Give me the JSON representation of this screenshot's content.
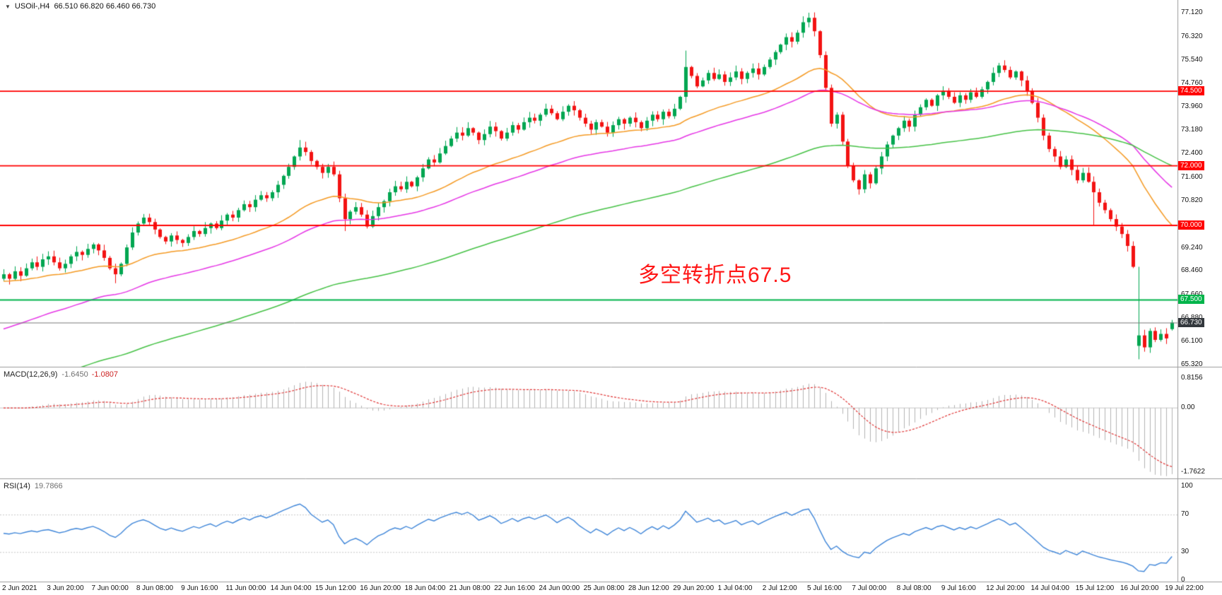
{
  "icons": {
    "symbol_marker": "▼"
  },
  "header": {
    "symbol": "USOil-,H4",
    "ohlc": "66.510 66.820 66.460 66.730"
  },
  "colors": {
    "background": "#ffffff",
    "up": "#00a651",
    "down": "#f31212",
    "ma_fast": "#f59a23",
    "ma_mid": "#e636e6",
    "ma_slow": "#46c246",
    "macd_hist": "#b3b3b3",
    "macd_signal": "#e03232",
    "macd_zero": "#c9c9c9",
    "rsi_line": "#3f86d9",
    "rsi_level": "#c8c8c8",
    "level_red": "#ff0000",
    "level_green": "#00b44a",
    "current_line": "#7a7a7a",
    "current_badge": "#33383d",
    "separator": "#9b9b9b"
  },
  "chart_data": [
    {
      "type": "candlestick",
      "title": "USOil-,H4",
      "timeframe": "H4",
      "ylim": [
        65.32,
        77.12
      ],
      "ohlc_current": {
        "open": 66.51,
        "high": 66.82,
        "low": 66.46,
        "close": 66.73
      },
      "closes": [
        68.35,
        68.2,
        68.45,
        68.3,
        68.55,
        68.75,
        68.6,
        68.85,
        68.95,
        68.75,
        68.55,
        68.7,
        68.95,
        69.1,
        69.0,
        69.2,
        69.35,
        69.15,
        68.9,
        68.55,
        68.35,
        68.7,
        69.25,
        69.75,
        70.05,
        70.25,
        70.1,
        69.85,
        69.6,
        69.45,
        69.65,
        69.5,
        69.4,
        69.6,
        69.8,
        69.7,
        69.9,
        70.05,
        69.9,
        70.15,
        70.35,
        70.25,
        70.5,
        70.7,
        70.6,
        70.85,
        71.0,
        70.9,
        71.1,
        71.35,
        71.65,
        71.95,
        72.3,
        72.6,
        72.45,
        72.15,
        71.95,
        71.75,
        71.95,
        71.7,
        70.9,
        70.2,
        70.45,
        70.6,
        70.35,
        69.95,
        70.3,
        70.6,
        70.8,
        71.1,
        71.3,
        71.2,
        71.45,
        71.3,
        71.6,
        71.9,
        72.2,
        72.1,
        72.4,
        72.65,
        72.9,
        73.1,
        73.0,
        73.25,
        73.1,
        72.85,
        73.05,
        73.3,
        73.15,
        72.9,
        73.1,
        73.35,
        73.2,
        73.45,
        73.6,
        73.5,
        73.7,
        73.9,
        73.75,
        73.55,
        73.8,
        74.0,
        73.85,
        73.6,
        73.4,
        73.2,
        73.45,
        73.3,
        73.1,
        73.35,
        73.55,
        73.4,
        73.6,
        73.45,
        73.25,
        73.5,
        73.7,
        73.55,
        73.8,
        73.65,
        73.9,
        74.3,
        75.3,
        75.0,
        74.65,
        74.85,
        75.1,
        74.9,
        75.05,
        74.8,
        74.95,
        75.15,
        74.9,
        75.1,
        75.25,
        75.05,
        75.3,
        75.55,
        75.8,
        76.05,
        76.3,
        76.15,
        76.45,
        76.8,
        76.95,
        76.5,
        75.7,
        74.6,
        73.4,
        73.7,
        72.8,
        72.0,
        71.5,
        71.2,
        71.7,
        71.4,
        71.9,
        72.3,
        72.7,
        73.0,
        73.25,
        73.5,
        73.3,
        73.7,
        73.95,
        74.2,
        74.0,
        74.35,
        74.5,
        74.3,
        74.1,
        74.35,
        74.2,
        74.45,
        74.3,
        74.55,
        74.8,
        75.1,
        75.35,
        75.2,
        74.95,
        75.15,
        74.85,
        74.5,
        74.1,
        73.6,
        73.0,
        72.55,
        72.3,
        71.95,
        72.2,
        71.85,
        71.5,
        71.75,
        71.45,
        71.1,
        70.75,
        70.5,
        70.2,
        69.95,
        69.7,
        69.3,
        68.6,
        66.3,
        65.9,
        66.45,
        66.15,
        66.35,
        66.2,
        66.73
      ],
      "special_candles": {
        "20": {
          "low": 68.05
        },
        "53": {
          "high": 72.85
        },
        "61": {
          "low": 69.8
        },
        "122": {
          "high": 75.85
        },
        "143": {
          "high": 77.0
        },
        "144": {
          "high": 77.12
        },
        "195": {
          "low": 70.0
        },
        "203": {
          "open": 65.95,
          "high": 68.6,
          "low": 65.5
        },
        "209": {
          "open": 66.51,
          "high": 66.82,
          "low": 66.46,
          "close": 66.73
        }
      },
      "moving_averages": [
        {
          "name": "fast-ma",
          "color": "#f59a23",
          "alpha": 0.06,
          "seed": 68.1
        },
        {
          "name": "mid-ma",
          "color": "#e636e6",
          "alpha": 0.035,
          "seed": 66.45
        },
        {
          "name": "slow-ma",
          "color": "#46c246",
          "alpha": 0.016,
          "seed": 64.3
        }
      ],
      "levels": [
        {
          "value": 74.5,
          "label": "74.500",
          "color": "#ff0000"
        },
        {
          "value": 72.0,
          "label": "72.000",
          "color": "#ff0000"
        },
        {
          "value": 70.0,
          "label": "70.000",
          "color": "#ff0000"
        },
        {
          "value": 67.5,
          "label": "67.500",
          "color": "#00b44a"
        }
      ],
      "current_price": {
        "value": 66.73,
        "label": "66.730"
      },
      "annotation": {
        "text": "多空转折点67.5",
        "color": "#ff1616",
        "near_price": 68.5
      },
      "price_axis_labels": [
        "77.120",
        "76.320",
        "75.540",
        "74.760",
        "73.960",
        "73.180",
        "72.400",
        "71.600",
        "70.820",
        "69.240",
        "68.460",
        "67.660",
        "66.880",
        "66.100",
        "65.320"
      ],
      "x_labels": [
        "2 Jun 2021",
        "3 Jun 20:00",
        "7 Jun 00:00",
        "8 Jun 08:00",
        "9 Jun 16:00",
        "11 Jun 00:00",
        "14 Jun 04:00",
        "15 Jun 12:00",
        "16 Jun 20:00",
        "18 Jun 04:00",
        "21 Jun 08:00",
        "22 Jun 16:00",
        "24 Jun 00:00",
        "25 Jun 08:00",
        "28 Jun 12:00",
        "29 Jun 20:00",
        "1 Jul 04:00",
        "2 Jul 12:00",
        "5 Jul 16:00",
        "7 Jul 00:00",
        "8 Jul 08:00",
        "9 Jul 16:00",
        "12 Jul 20:00",
        "14 Jul 04:00",
        "15 Jul 12:00",
        "16 Jul 20:00",
        "19 Jul 22:00"
      ]
    },
    {
      "type": "macd-histogram",
      "label": "MACD(12,26,9)",
      "value_main": "-1.6450",
      "value_signal": "-1.0807",
      "params": {
        "fast": 12,
        "slow": 26,
        "signal": 9
      },
      "y_axis": [
        {
          "v": 0.8156,
          "t": "0.8156"
        },
        {
          "v": 0,
          "t": "0.00"
        },
        {
          "v": -1.7622,
          "t": "-1.7622"
        }
      ]
    },
    {
      "type": "line",
      "label": "RSI(14)",
      "value": "19.7866",
      "period": 14,
      "ylim": [
        0,
        100
      ],
      "levels": [
        70,
        30
      ],
      "y_axis": [
        {
          "v": 100,
          "t": "100"
        },
        {
          "v": 70,
          "t": "70"
        },
        {
          "v": 30,
          "t": "30"
        },
        {
          "v": 0,
          "t": "0"
        }
      ]
    }
  ]
}
